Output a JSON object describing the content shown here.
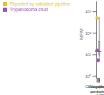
{
  "chart_data": {
    "type": "box",
    "categories": [
      "Negative\ncontrols,\nn = 1,000",
      "Healthy\npersons,\nn = 684",
      "Case-patient"
    ],
    "ylabel": "MPM",
    "log": "y",
    "ylim": [
      0.8,
      3000.0
    ],
    "yticks": [
      {
        "value": 1,
        "label": "10⁰"
      },
      {
        "value": 10,
        "label": "10¹"
      },
      {
        "value": 100,
        "label": "10²"
      },
      {
        "value": 1000,
        "label": "10³"
      }
    ],
    "box": {
      "color": "#d8d8d8",
      "stats": [
        null,
        null,
        {
          "median": 14.0,
          "q1": 9.5,
          "q3": 42.0,
          "whislo": 5.0,
          "whishi": 550.0
        }
      ]
    },
    "reference_line": {
      "y": 505.61,
      "color": "#89cfe0"
    },
    "series": [
      {
        "name": "Trypanosoma cruzi",
        "type": "scatter",
        "marker": "circle",
        "color": "#9b59b6",
        "values": [
          16.0,
          5.5,
          null
        ]
      },
      {
        "name": "Reported by validated pipeline",
        "type": "scatter",
        "marker": "star",
        "color": "#e8c232",
        "values": [
          null,
          null,
          505.61
        ]
      }
    ],
    "legend": "upper left"
  }
}
